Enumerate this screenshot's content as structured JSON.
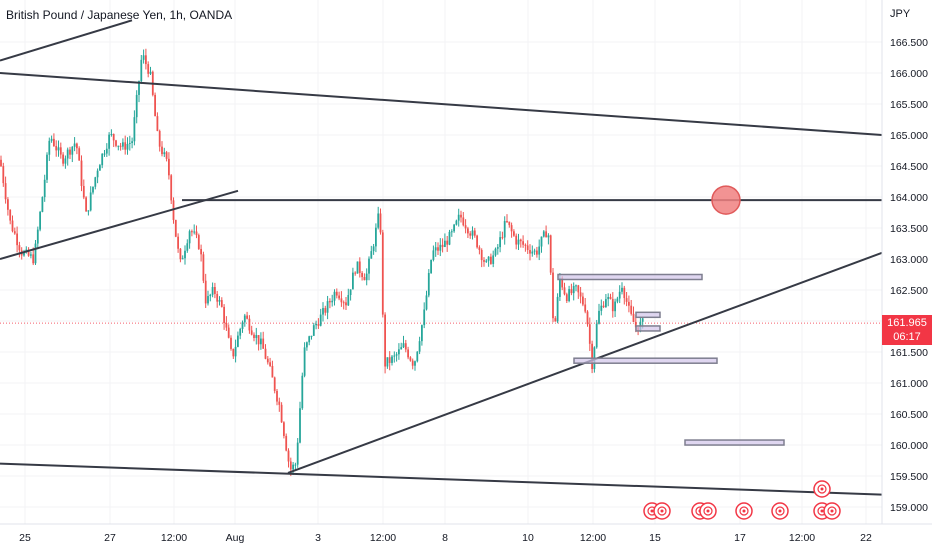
{
  "header": {
    "title": "British Pound / Japanese Yen, 1h, OANDA",
    "currency": "JPY"
  },
  "last_price": {
    "value": "161.965",
    "countdown": "06:17"
  },
  "colors": {
    "up": "#26a69a",
    "down": "#ef5350",
    "drawing": "#363a45",
    "circle_fill": "#f08080",
    "circle_stroke": "#e05a5a",
    "rect_fill": "#d1c4e9",
    "rect_stroke": "#7e7e8f",
    "price_line": "#f23645",
    "event_icon": "#f23645"
  },
  "chart_data": {
    "type": "candlestick",
    "symbol": "GBPJPY",
    "timeframe": "1h",
    "y_ticks": [
      "166.500",
      "166.000",
      "165.500",
      "165.000",
      "164.500",
      "164.000",
      "163.500",
      "163.000",
      "162.500",
      "162.000",
      "161.500",
      "161.000",
      "160.500",
      "160.000",
      "159.500",
      "159.000"
    ],
    "x_ticks": [
      "25",
      "27",
      "12:00",
      "Aug",
      "3",
      "12:00",
      "8",
      "10",
      "12:00",
      "15",
      "17",
      "12:00",
      "22"
    ],
    "ylim": [
      158.9,
      166.85
    ],
    "price_path": [
      [
        0,
        164.6
      ],
      [
        10,
        163.6
      ],
      [
        22,
        163.1
      ],
      [
        34,
        163.0
      ],
      [
        44,
        164.2
      ],
      [
        50,
        165.0
      ],
      [
        62,
        164.6
      ],
      [
        76,
        164.9
      ],
      [
        86,
        163.7
      ],
      [
        98,
        164.5
      ],
      [
        110,
        165.0
      ],
      [
        122,
        164.8
      ],
      [
        132,
        164.9
      ],
      [
        142,
        166.3
      ],
      [
        150,
        166.0
      ],
      [
        158,
        164.9
      ],
      [
        168,
        164.5
      ],
      [
        174,
        163.6
      ],
      [
        180,
        162.9
      ],
      [
        190,
        163.5
      ],
      [
        200,
        163.2
      ],
      [
        206,
        162.3
      ],
      [
        214,
        162.5
      ],
      [
        222,
        162.2
      ],
      [
        232,
        161.4
      ],
      [
        244,
        162.1
      ],
      [
        254,
        161.8
      ],
      [
        262,
        161.6
      ],
      [
        270,
        161.2
      ],
      [
        280,
        160.6
      ],
      [
        290,
        159.6
      ],
      [
        296,
        159.7
      ],
      [
        304,
        161.5
      ],
      [
        314,
        161.9
      ],
      [
        326,
        162.2
      ],
      [
        336,
        162.5
      ],
      [
        346,
        162.3
      ],
      [
        356,
        162.9
      ],
      [
        366,
        162.7
      ],
      [
        374,
        163.3
      ],
      [
        380,
        163.8
      ],
      [
        384,
        161.3
      ],
      [
        394,
        161.4
      ],
      [
        404,
        161.6
      ],
      [
        414,
        161.3
      ],
      [
        424,
        162.1
      ],
      [
        432,
        163.1
      ],
      [
        442,
        163.2
      ],
      [
        452,
        163.4
      ],
      [
        460,
        163.7
      ],
      [
        468,
        163.5
      ],
      [
        476,
        163.3
      ],
      [
        486,
        162.9
      ],
      [
        496,
        163.1
      ],
      [
        506,
        163.6
      ],
      [
        516,
        163.3
      ],
      [
        526,
        163.2
      ],
      [
        536,
        163.1
      ],
      [
        548,
        163.5
      ],
      [
        554,
        161.8
      ],
      [
        560,
        162.7
      ],
      [
        566,
        162.4
      ],
      [
        576,
        162.5
      ],
      [
        586,
        162.2
      ],
      [
        592,
        161.3
      ],
      [
        598,
        162.1
      ],
      [
        606,
        162.4
      ],
      [
        614,
        162.2
      ],
      [
        622,
        162.6
      ],
      [
        630,
        162.1
      ],
      [
        636,
        161.9
      ],
      [
        644,
        161.97
      ]
    ],
    "drawings": {
      "trendlines": [
        {
          "from": [
            0,
            166.0
          ],
          "to": [
            882,
            165.0
          ]
        },
        {
          "from": [
            0,
            159.7
          ],
          "to": [
            882,
            159.2
          ]
        },
        {
          "from": [
            0,
            163.0
          ],
          "to": [
            238,
            164.1
          ]
        },
        {
          "from": [
            0,
            166.2
          ],
          "to": [
            132,
            166.85
          ]
        },
        {
          "from": [
            182,
            163.95
          ],
          "to": [
            882,
            163.95
          ]
        },
        {
          "from": [
            288,
            159.55
          ],
          "to": [
            882,
            163.1
          ]
        }
      ],
      "zones": [
        {
          "x": [
            558,
            702
          ],
          "y": [
            162.68,
            162.75
          ]
        },
        {
          "x": [
            574,
            717
          ],
          "y": [
            161.32,
            161.4
          ]
        },
        {
          "x": [
            685,
            784
          ],
          "y": [
            160.0,
            160.08
          ]
        },
        {
          "x": [
            636,
            660
          ],
          "y": [
            161.86,
            161.92
          ]
        },
        {
          "x": [
            636,
            660
          ],
          "y": [
            162.08,
            162.14
          ]
        }
      ],
      "circle": {
        "x": 726,
        "y": 163.95
      }
    },
    "event_markers_x": [
      652,
      662,
      700,
      708,
      744,
      780,
      822,
      832,
      822
    ]
  }
}
